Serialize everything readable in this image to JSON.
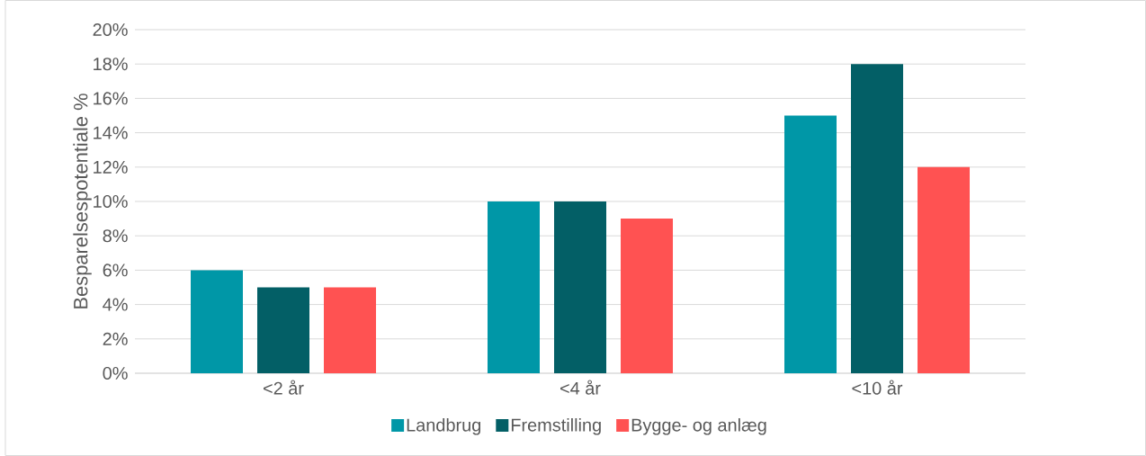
{
  "chart_data": {
    "type": "bar",
    "ylabel": "Besparelsespotentiale %",
    "categories": [
      "<2 år",
      "<4 år",
      "<10 år"
    ],
    "series": [
      {
        "name": "Landbrug",
        "color": "#0097a7",
        "values": [
          6,
          10,
          15
        ]
      },
      {
        "name": "Fremstilling",
        "color": "#035f66",
        "values": [
          5,
          10,
          18
        ]
      },
      {
        "name": "Bygge- og anlæg",
        "color": "#ff5252",
        "values": [
          5,
          9,
          12
        ]
      }
    ],
    "ylim": [
      0,
      20
    ],
    "yticks": [
      {
        "value": 0,
        "label": "0%"
      },
      {
        "value": 2,
        "label": "2%"
      },
      {
        "value": 4,
        "label": "4%"
      },
      {
        "value": 6,
        "label": "6%"
      },
      {
        "value": 8,
        "label": "8%"
      },
      {
        "value": 10,
        "label": "10%"
      },
      {
        "value": 12,
        "label": "12%"
      },
      {
        "value": 14,
        "label": "14%"
      },
      {
        "value": 16,
        "label": "16%"
      },
      {
        "value": 18,
        "label": "18%"
      },
      {
        "value": 20,
        "label": "20%"
      }
    ],
    "grid": "y",
    "legend": "bottom"
  }
}
